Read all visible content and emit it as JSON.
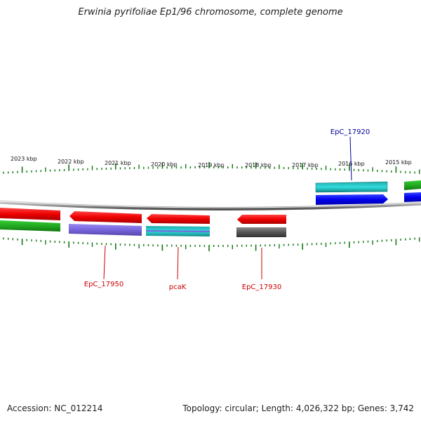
{
  "title": "Erwinia pyrifoliae Ep1/96 chromosome, complete genome",
  "footer": {
    "accession": "Accession: NC_012214",
    "summary": "Topology: circular; Length: 4,026,322 bp; Genes: 3,742"
  },
  "ruler_labels": [
    "2023 kbp",
    "2022 kbp",
    "2021 kbp",
    "2020 kbp",
    "2019 kbp",
    "2018 kbp",
    "2017 kbp",
    "2016 kbp",
    "2015 kbp"
  ],
  "gene_labels": {
    "top": [
      "EpC_17920"
    ],
    "bottom": [
      "EpC_17950",
      "pcaK",
      "EpC_17930"
    ]
  },
  "colors": {
    "red": "#ee0000",
    "green": "#22aa22",
    "blue": "#0000ee",
    "cyan": "#11bbbb",
    "purple": "#7766dd",
    "gray": "#555555",
    "tick": "#117711",
    "label_top": "#000099",
    "label_bottom": "#cc0000"
  }
}
